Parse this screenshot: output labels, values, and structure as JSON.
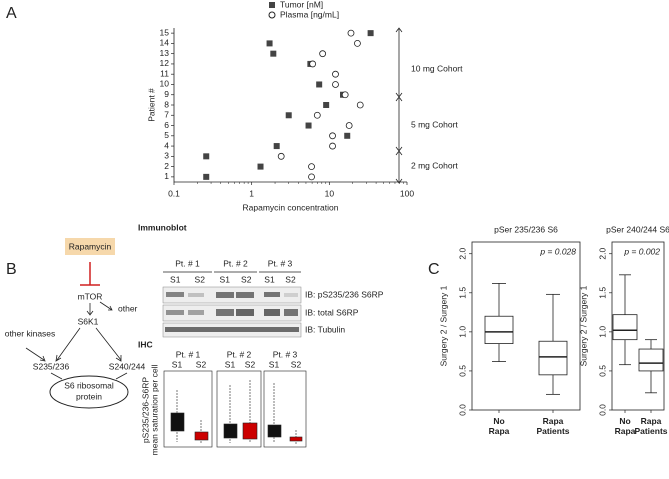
{
  "panel_labels": [
    "A",
    "B",
    "C"
  ],
  "chart_data": [
    {
      "type": "scatter",
      "xlabel": "Rapamycin concentration",
      "ylabel": "Patient #",
      "xscale": "log",
      "xlim": [
        0.1,
        100
      ],
      "ylim": [
        0.5,
        15.5
      ],
      "xticks": [
        0.1,
        1,
        10,
        100
      ],
      "yticks": [
        1,
        2,
        3,
        4,
        5,
        6,
        7,
        8,
        9,
        10,
        11,
        12,
        13,
        14,
        15
      ],
      "y": [
        1,
        2,
        3,
        4,
        5,
        6,
        7,
        8,
        9,
        10,
        11,
        12,
        13,
        14,
        15
      ],
      "series": [
        {
          "name": "Tumor [nM]",
          "marker": "square",
          "color": "#444444",
          "x": [
            0.26,
            1.3,
            0.26,
            2.1,
            17,
            5.4,
            3.0,
            9.1,
            15,
            7.4,
            null,
            5.7,
            1.9,
            1.7,
            34
          ]
        },
        {
          "name": "Plasma [ng/mL]",
          "marker": "circle",
          "color": "#222222",
          "x": [
            5.9,
            5.9,
            2.4,
            11,
            11,
            18,
            7.0,
            25,
            16,
            12,
            12,
            6.1,
            8.2,
            23,
            19
          ]
        }
      ],
      "annotations": [
        "10 mg Cohort",
        "5 mg Cohort",
        "2 mg Cohort"
      ]
    },
    {
      "type": "box",
      "title": "pSer 235/236 S6",
      "ylabel": "Surgery 2 / Surgery 1",
      "annotation": "p = 0.028",
      "categories": [
        "No Rapa",
        "Rapa Patients"
      ],
      "ylim": [
        0,
        2.15
      ],
      "yticks": [
        {
          "value": 0,
          "label": "0.0"
        },
        0.5,
        {
          "value": 1,
          "label": "1.0"
        },
        1.5,
        {
          "value": 2,
          "label": "2.0"
        }
      ],
      "boxes": [
        {
          "whislo": 0.62,
          "q1": 0.85,
          "med": 1.0,
          "q3": 1.2,
          "whishi": 1.62
        },
        {
          "whislo": 0.2,
          "q1": 0.45,
          "med": 0.68,
          "q3": 0.88,
          "whishi": 1.48
        }
      ]
    },
    {
      "type": "box",
      "title": "pSer 240/244 S6",
      "ylabel": "Surgery 2 / Surgery 1",
      "annotation": "p = 0.002",
      "categories": [
        "No Rapa",
        "Rapa Patients"
      ],
      "ylim": [
        0,
        2.15
      ],
      "yticks": [
        {
          "value": 0,
          "label": "0.0"
        },
        0.5,
        {
          "value": 1,
          "label": "1.0"
        },
        1.5,
        {
          "value": 2,
          "label": "2.0"
        }
      ],
      "boxes": [
        {
          "whislo": 0.58,
          "q1": 0.9,
          "med": 1.02,
          "q3": 1.22,
          "whishi": 1.73
        },
        {
          "whislo": 0.22,
          "q1": 0.5,
          "med": 0.6,
          "q3": 0.78,
          "whishi": 0.9
        }
      ]
    }
  ],
  "pathway": {
    "drug": "Rapamycin",
    "nodes": [
      "mTOR",
      "S6K1",
      "other kinases",
      "other",
      "S235/236",
      "S240/244",
      "S6 ribosomal",
      "protein"
    ]
  },
  "immunoblot": {
    "title": "Immunoblot",
    "patients": [
      "Pt. # 1",
      "Pt. # 2",
      "Pt. # 3"
    ],
    "samples": [
      "S1",
      "S2"
    ],
    "rows": [
      "IB: pS235/236 S6RP",
      "IB: total S6RP",
      "IB: Tubulin"
    ]
  },
  "ihc": {
    "title": "IHC",
    "ylabel": [
      "pS235/236-S6RP",
      "mean saturation per cell"
    ]
  }
}
